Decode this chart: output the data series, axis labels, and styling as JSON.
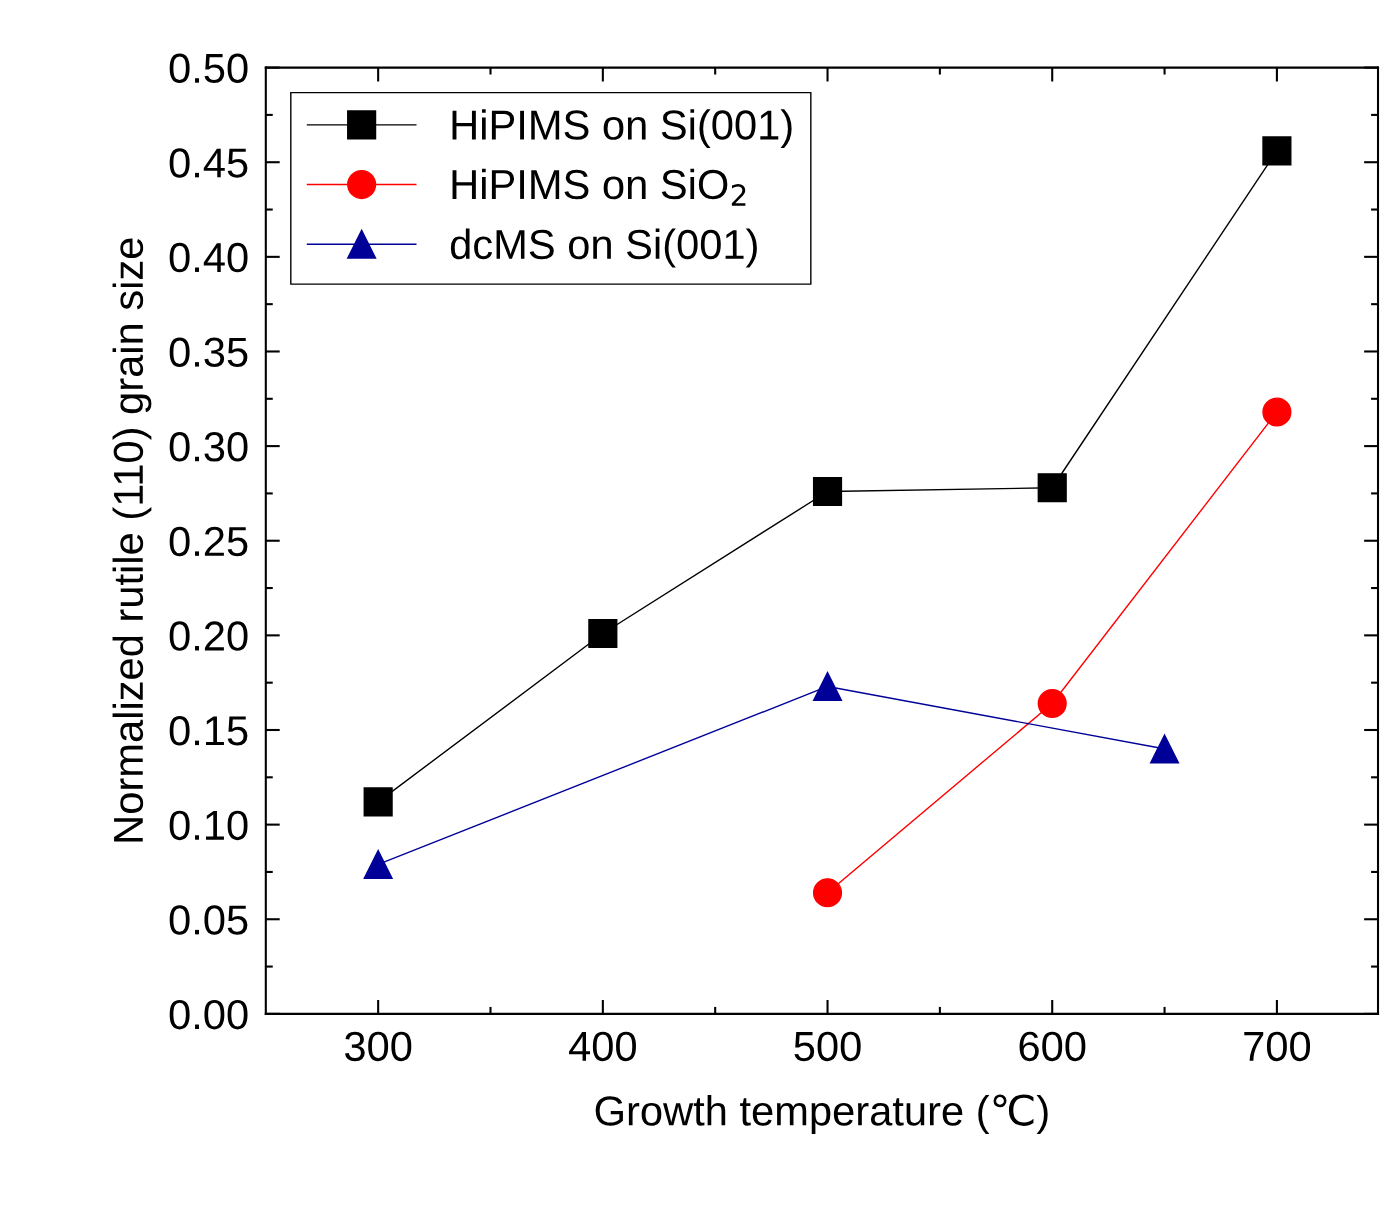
{
  "chart_data": {
    "type": "line",
    "xlabel": "Growth temperature (℃)",
    "ylabel": "Normalized rutile (110) grain size",
    "xlim": [
      250,
      745
    ],
    "xticks": [
      300,
      400,
      500,
      600,
      700
    ],
    "ylim": [
      0,
      0.5
    ],
    "yticks": [
      {
        "value": 0,
        "label": "0.00"
      },
      0.05,
      {
        "value": 0.1,
        "label": "0.10"
      },
      0.15,
      {
        "value": 0.2,
        "label": "0.20"
      },
      0.25,
      {
        "value": 0.3,
        "label": "0.30"
      },
      0.35,
      {
        "value": 0.4,
        "label": "0.40"
      },
      0.45,
      {
        "value": 0.5,
        "label": "0.50"
      }
    ],
    "grid": false,
    "legend": "top left",
    "line_style": "solid",
    "series": [
      {
        "name": "HiPIMS on Si(001)",
        "color": "#000000",
        "marker": "square",
        "x": [
          300,
          400,
          500,
          600,
          700
        ],
        "values": [
          0.112,
          0.201,
          0.276,
          0.278,
          0.456
        ]
      },
      {
        "name": "HiPIMS on SiO$_{2}$",
        "color": "#ff0000",
        "marker": "circle",
        "x": [
          500,
          600,
          700
        ],
        "values": [
          0.064,
          0.164,
          0.318
        ]
      },
      {
        "name": "dcMS on Si(001)",
        "color": "#000099",
        "marker": "triangle",
        "x": [
          300,
          500,
          650
        ],
        "values": [
          0.079,
          0.173,
          0.14
        ]
      }
    ]
  }
}
